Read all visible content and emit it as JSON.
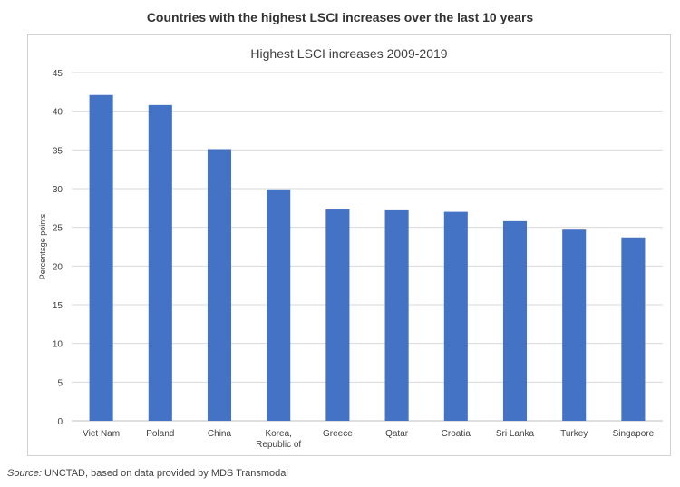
{
  "header": {
    "title": "Countries with the highest LSCI increases over the last 10 years"
  },
  "footer": {
    "source_label": "Source:",
    "source_text": " UNCTAD, based on data provided by MDS Transmodal"
  },
  "chart_data": {
    "type": "bar",
    "title": "Highest LSCI increases 2009-2019",
    "xlabel": "",
    "ylabel": "Percentage points",
    "categories": [
      "Viet Nam",
      "Poland",
      "China",
      "Korea, Republic of",
      "Greece",
      "Qatar",
      "Croatia",
      "Sri Lanka",
      "Turkey",
      "Singapore"
    ],
    "category_display": [
      [
        "Viet Nam"
      ],
      [
        "Poland"
      ],
      [
        "China"
      ],
      [
        "Korea,",
        "Republic of"
      ],
      [
        "Greece"
      ],
      [
        "Qatar"
      ],
      [
        "Croatia"
      ],
      [
        "Sri Lanka"
      ],
      [
        "Turkey"
      ],
      [
        "Singapore"
      ]
    ],
    "values": [
      42.1,
      40.8,
      35.1,
      29.9,
      27.3,
      27.2,
      27.0,
      25.8,
      24.7,
      23.7
    ],
    "ylim": [
      0,
      45
    ],
    "yticks": [
      0,
      5,
      10,
      15,
      20,
      25,
      30,
      35,
      40,
      45
    ],
    "grid": true,
    "legend": "none",
    "colors": {
      "bar": "#4472C4",
      "grid": "#d9d9d9",
      "text": "#404040"
    }
  }
}
